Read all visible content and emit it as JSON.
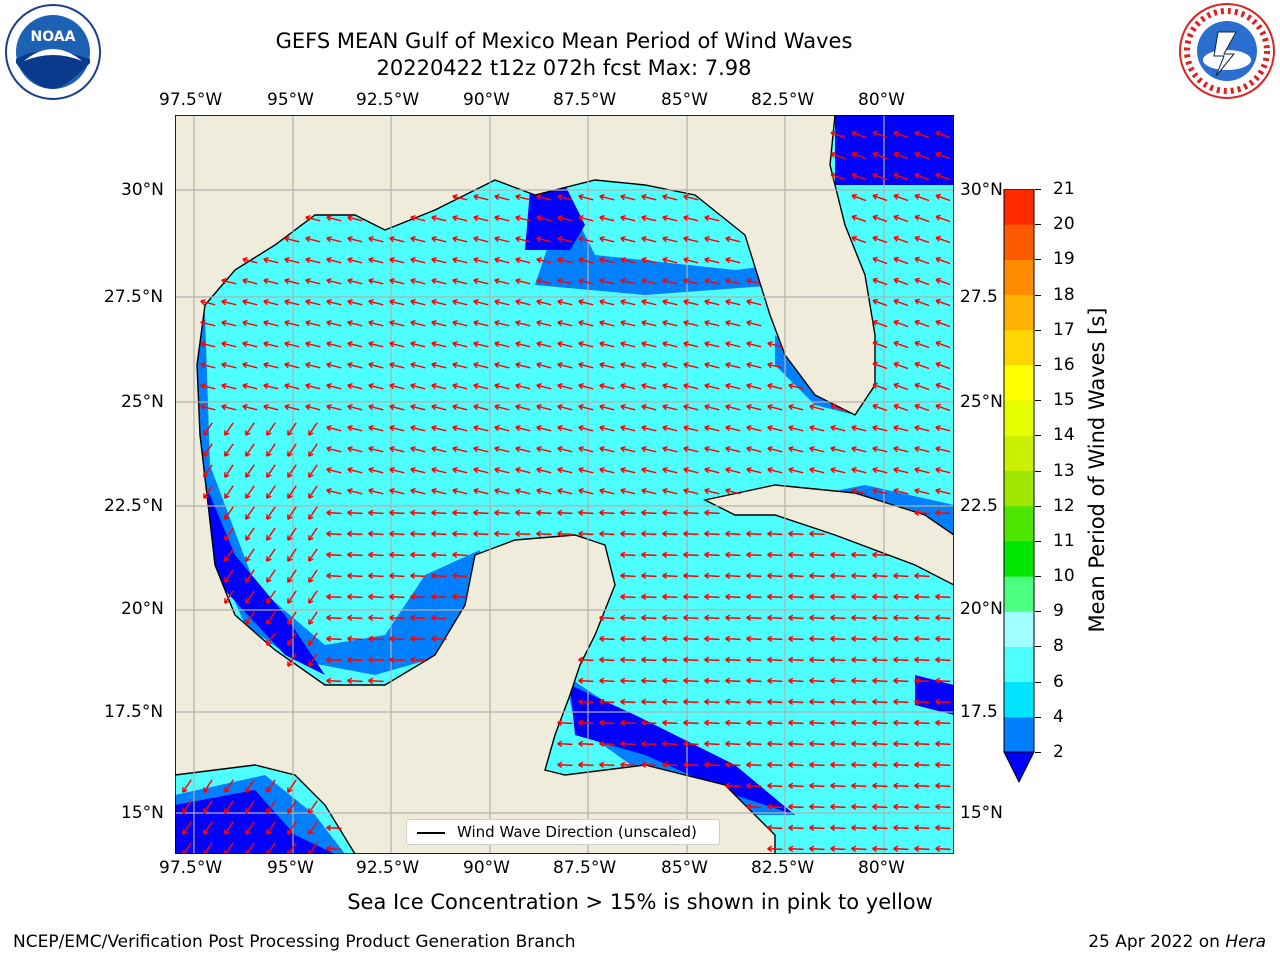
{
  "title": {
    "line1": "GEFS MEAN Gulf of Mexico Mean Period of Wind Waves",
    "line2": "20220422 t12z 072h fcst   Max: 7.98"
  },
  "map": {
    "lon_labels": [
      "97.5°W",
      "95°W",
      "92.5°W",
      "90°W",
      "87.5°W",
      "85°W",
      "82.5°W",
      "80°W"
    ],
    "lat_labels_left": [
      "30°N",
      "27.5°N",
      "25°N",
      "22.5°N",
      "20°N",
      "17.5°N",
      "15°N"
    ],
    "lat_labels_right": [
      "30°N",
      "27.5",
      "25°N",
      "22.5",
      "20°N",
      "17.5",
      "15°N"
    ],
    "land_color": "#efecdc",
    "arrow_color": "#ff0000",
    "grid_color": "#b0b0b0"
  },
  "legend": {
    "label": "Wind Wave Direction (unscaled)"
  },
  "colorbar": {
    "label": "Mean Period of Wind Waves [s]",
    "ticks": [
      "2",
      "4",
      "6",
      "8",
      "9",
      "10",
      "11",
      "12",
      "13",
      "14",
      "15",
      "16",
      "17",
      "18",
      "19",
      "20",
      "21"
    ],
    "colors": [
      "#0080ff",
      "#00e5ff",
      "#4dffff",
      "#a0ffff",
      "#4dff80",
      "#00e600",
      "#4de600",
      "#a0e600",
      "#c8f000",
      "#e6ff00",
      "#ffff00",
      "#ffd700",
      "#ffb000",
      "#ff8c00",
      "#ff5a00",
      "#ff2a00"
    ],
    "under_color": "#0000ff"
  },
  "note": "Sea Ice Concentration > 15% is shown in pink to yellow",
  "footer": {
    "left": "NCEP/EMC/Verification Post Processing Product Generation Branch",
    "date": "25 Apr 2022 on",
    "host": "Hera"
  }
}
